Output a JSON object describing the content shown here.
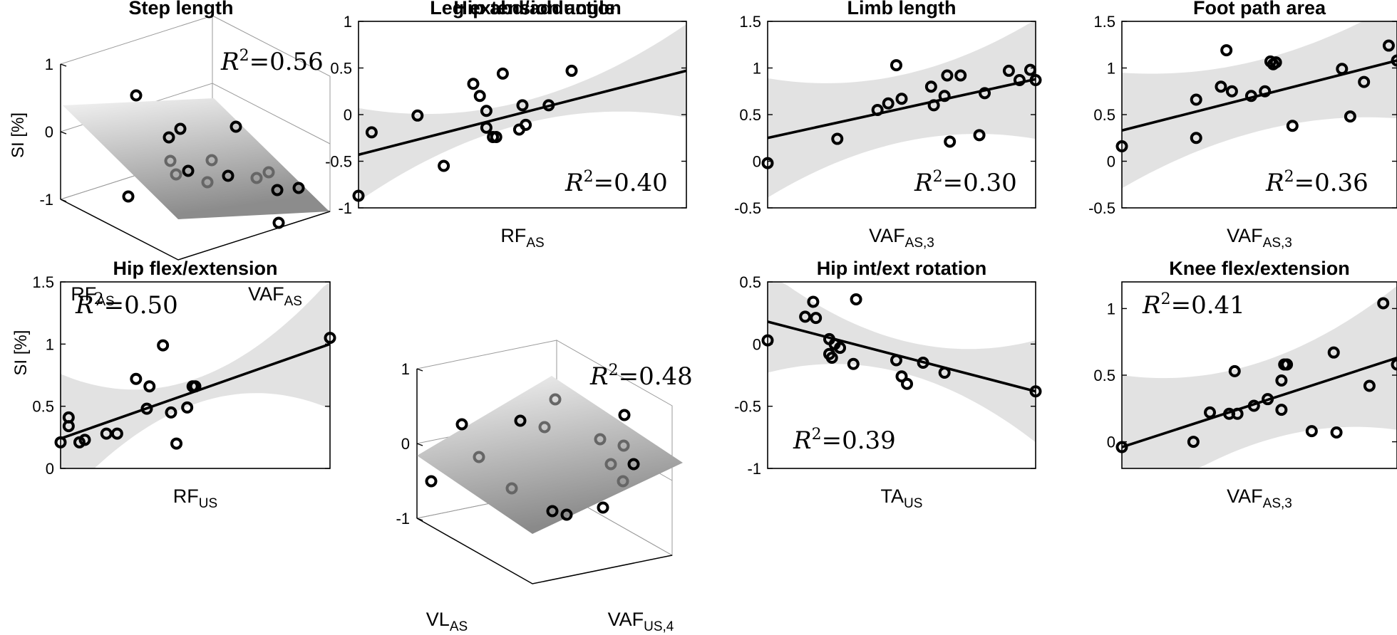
{
  "chart_data": [
    {
      "type": "scatter-3d",
      "title": "Step length",
      "ylabel": "SI [%]",
      "xlabel_main": "RF",
      "xlabel_sub": "AS",
      "zlabel_main": "VAF",
      "zlabel_sub": "AS",
      "zticks": [
        "1",
        "0",
        "-1"
      ],
      "r2_symbol": "R",
      "r2_value": "=0.56"
    },
    {
      "type": "scatter",
      "title": "Leg extension angle",
      "xlabel_main": "RF",
      "xlabel_sub": "AS",
      "ylim": [
        -1,
        1
      ],
      "yticks": [
        "1",
        "0.5",
        "0",
        "-0.5",
        "-1"
      ],
      "x": [
        0.0,
        0.04,
        0.18,
        0.26,
        0.35,
        0.37,
        0.39,
        0.39,
        0.41,
        0.42,
        0.44,
        0.49,
        0.5,
        0.51,
        0.58,
        0.65
      ],
      "y": [
        -0.87,
        -0.19,
        -0.01,
        -0.55,
        0.33,
        0.2,
        0.04,
        -0.14,
        -0.24,
        -0.24,
        0.44,
        -0.16,
        0.1,
        -0.11,
        0.1,
        0.47
      ],
      "fit": [
        -0.43,
        0.47
      ],
      "r2_symbol": "R",
      "r2_value": "=0.40"
    },
    {
      "type": "scatter",
      "title": "Limb length",
      "xlabel_main": "VAF",
      "xlabel_sub": "AS,3",
      "ylim": [
        -0.5,
        1.5
      ],
      "yticks": [
        "1.5",
        "1",
        "0.5",
        "0",
        "-0.5"
      ],
      "x": [
        0.0,
        0.26,
        0.41,
        0.45,
        0.48,
        0.5,
        0.61,
        0.62,
        0.66,
        0.67,
        0.68,
        0.72,
        0.79,
        0.81,
        0.9,
        0.94,
        0.98,
        1.0
      ],
      "y": [
        -0.02,
        0.24,
        0.55,
        0.62,
        1.03,
        0.67,
        0.8,
        0.6,
        0.7,
        0.92,
        0.21,
        0.92,
        0.28,
        0.73,
        0.97,
        0.87,
        0.98,
        0.87
      ],
      "fit": [
        0.25,
        0.88
      ],
      "r2_symbol": "R",
      "r2_value": "=0.30"
    },
    {
      "type": "scatter",
      "title": "Foot path area",
      "xlabel_main": "VAF",
      "xlabel_sub": "AS,3",
      "ylim": [
        -0.5,
        1.5
      ],
      "yticks": [
        "1.5",
        "1",
        "0.5",
        "0",
        "-0.5"
      ],
      "x": [
        0.0,
        0.27,
        0.27,
        0.36,
        0.38,
        0.4,
        0.47,
        0.52,
        0.54,
        0.55,
        0.56,
        0.62,
        0.8,
        0.83,
        0.88,
        0.97,
        1.0
      ],
      "y": [
        0.16,
        0.25,
        0.66,
        0.8,
        1.19,
        0.75,
        0.7,
        0.75,
        1.07,
        1.04,
        1.06,
        0.38,
        0.99,
        0.48,
        0.85,
        1.24,
        1.08
      ],
      "fit": [
        0.33,
        1.08
      ],
      "r2_symbol": "R",
      "r2_value": "=0.36"
    },
    {
      "type": "scatter",
      "title": "Hip flex/extension",
      "ylabel": "SI [%]",
      "xlabel_main": "RF",
      "xlabel_sub": "US",
      "ylim": [
        0,
        1.5
      ],
      "yticks": [
        "1.5",
        "1",
        "0.5",
        "0"
      ],
      "x": [
        0.0,
        0.03,
        0.03,
        0.07,
        0.09,
        0.17,
        0.21,
        0.28,
        0.33,
        0.32,
        0.38,
        0.41,
        0.43,
        0.47,
        0.49,
        0.5,
        1.0
      ],
      "y": [
        0.21,
        0.34,
        0.41,
        0.21,
        0.23,
        0.28,
        0.28,
        0.72,
        0.66,
        0.48,
        0.99,
        0.45,
        0.2,
        0.49,
        0.66,
        0.66,
        1.05
      ],
      "fit": [
        0.24,
        1.0
      ],
      "r2_symbol": "R",
      "r2_value": "=0.50"
    },
    {
      "type": "scatter-3d",
      "title": "Hip abd/adduction",
      "xlabel_main": "VL",
      "xlabel_sub": "AS",
      "zlabel_main": "VAF",
      "zlabel_sub": "US,4",
      "zticks": [
        "1",
        "0",
        "-1"
      ],
      "r2_symbol": "R",
      "r2_value": "=0.48"
    },
    {
      "type": "scatter",
      "title": "Hip int/ext rotation",
      "xlabel_main": "TA",
      "xlabel_sub": "US",
      "ylim": [
        -1,
        0.5
      ],
      "yticks": [
        "0.5",
        "0",
        "-0.5",
        "-1"
      ],
      "x": [
        0.0,
        0.14,
        0.17,
        0.18,
        0.23,
        0.23,
        0.24,
        0.25,
        0.27,
        0.32,
        0.33,
        0.48,
        0.5,
        0.52,
        0.58,
        0.66,
        1.0
      ],
      "y": [
        0.03,
        0.22,
        0.34,
        0.21,
        0.04,
        -0.08,
        -0.11,
        0.0,
        -0.03,
        -0.16,
        0.36,
        -0.13,
        -0.26,
        -0.32,
        -0.15,
        -0.23,
        -0.38
      ],
      "fit": [
        0.18,
        -0.38
      ],
      "r2_symbol": "R",
      "r2_value": "=0.39"
    },
    {
      "type": "scatter",
      "title": "Knee flex/extension",
      "xlabel_main": "VAF",
      "xlabel_sub": "AS,3",
      "ylim": [
        -0.2,
        1.2
      ],
      "yticks": [
        "1",
        "0.5",
        "0"
      ],
      "x": [
        0.0,
        0.26,
        0.32,
        0.39,
        0.41,
        0.42,
        0.48,
        0.53,
        0.58,
        0.58,
        0.59,
        0.6,
        0.69,
        0.77,
        0.78,
        0.9,
        0.95,
        1.0
      ],
      "y": [
        -0.04,
        0.0,
        0.22,
        0.21,
        0.53,
        0.21,
        0.27,
        0.32,
        0.24,
        0.46,
        0.58,
        0.58,
        0.08,
        0.67,
        0.07,
        0.42,
        1.04,
        0.58
      ],
      "fit": [
        -0.04,
        0.63
      ],
      "r2_symbol": "R",
      "r2_value": "=0.41"
    }
  ]
}
